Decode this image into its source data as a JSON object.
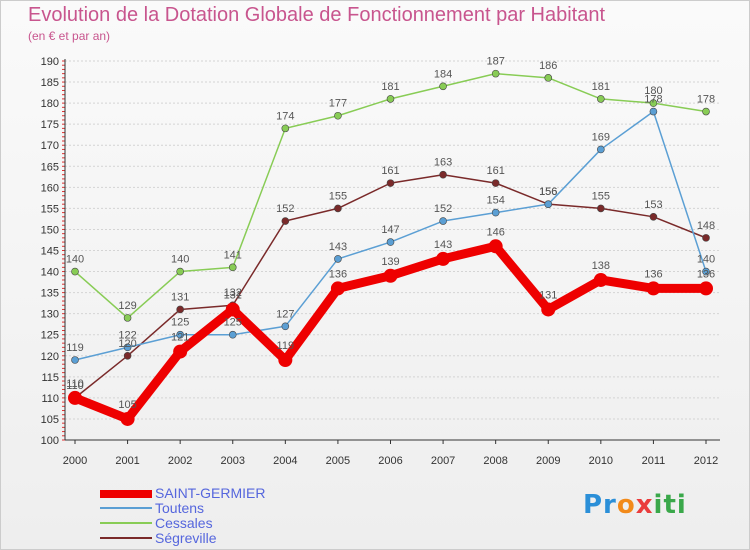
{
  "title": "Evolution de la Dotation Globale de Fonctionnement par Habitant",
  "subtitle": "(en € et par an)",
  "logo": {
    "text": "Proxiti",
    "parts": [
      "Pr",
      "o",
      "x",
      "iti"
    ]
  },
  "chart_data": {
    "type": "line",
    "title": "Evolution de la Dotation Globale de Fonctionnement par Habitant",
    "subtitle": "(en € et par an)",
    "xlabel": "",
    "ylabel": "",
    "ylim": [
      100,
      190
    ],
    "y_ticks": [
      100,
      105,
      110,
      115,
      120,
      125,
      130,
      135,
      140,
      145,
      150,
      155,
      160,
      165,
      170,
      175,
      180,
      185,
      190
    ],
    "categories": [
      "2000",
      "2001",
      "2002",
      "2003",
      "2004",
      "2005",
      "2006",
      "2007",
      "2008",
      "2009",
      "2010",
      "2011",
      "2012"
    ],
    "series": [
      {
        "name": "SAINT-GERMIER",
        "color": "#ee0000",
        "values": [
          110,
          105,
          121,
          131,
          119,
          136,
          139,
          143,
          146,
          131,
          138,
          136,
          136
        ]
      },
      {
        "name": "Toutens",
        "color": "#5b9fd4",
        "values": [
          119,
          122,
          125,
          125,
          127,
          143,
          147,
          152,
          154,
          156,
          169,
          178,
          140
        ]
      },
      {
        "name": "Cessales",
        "color": "#88cc55",
        "values": [
          140,
          129,
          140,
          141,
          174,
          177,
          181,
          184,
          187,
          186,
          181,
          180,
          178
        ]
      },
      {
        "name": "Ségreville",
        "color": "#7a2a2a",
        "values": [
          110,
          120,
          131,
          132,
          152,
          155,
          161,
          163,
          161,
          156,
          155,
          153,
          148
        ]
      }
    ],
    "legend_position": "bottom-left"
  }
}
